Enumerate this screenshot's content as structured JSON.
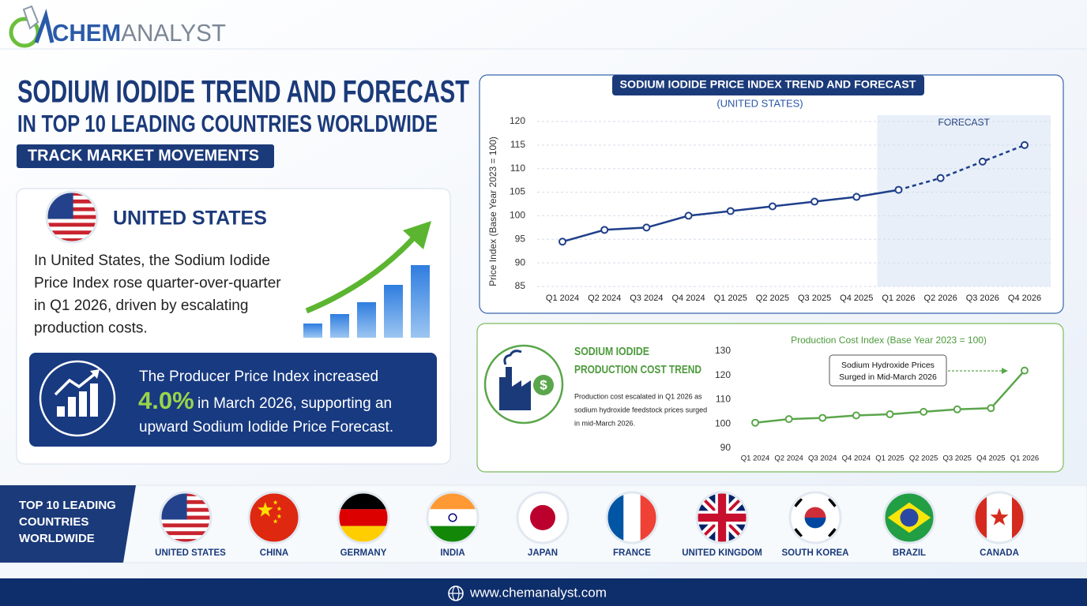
{
  "logo": {
    "brand_a": "CHEM",
    "brand_b": "ANALYST"
  },
  "title": [
    "SODIUM IODIDE TREND AND FORECAST",
    "IN TOP 10 LEADING COUNTRIES WORLDWIDE"
  ],
  "tagline": "TRACK MARKET MOVEMENTS",
  "country_card": {
    "country": "UNITED STATES",
    "text": [
      "In United States, the Sodium Iodide",
      "Price Index rose quarter-over-quarter",
      "in Q1 2026, driven by escalating",
      "production costs."
    ]
  },
  "ppi_card": {
    "line1": "The Producer Price Index increased",
    "highlight": "4.0%",
    "line2": "in March 2026, supporting an",
    "line3": "upward Sodium Iodide Price Forecast."
  },
  "cost_panel": {
    "title": [
      "SODIUM IODIDE",
      "PRODUCTION COST TREND"
    ],
    "text": [
      "Production cost escalated in Q1 2026 as",
      "sodium hydroxide feedstock prices surged",
      "in mid-March 2026."
    ]
  },
  "chart_data": [
    {
      "type": "line",
      "title": "SODIUM IODIDE PRICE INDEX TREND AND FORECAST",
      "subtitle": "(UNITED STATES)",
      "y_label": "Price Index (Base Year 2023 = 100)",
      "categories": [
        "Q1 2024",
        "Q2 2024",
        "Q3 2024",
        "Q4 2024",
        "Q1 2025",
        "Q2 2025",
        "Q3 2025",
        "Q4 2025",
        "Q1 2026",
        "Q2 2026",
        "Q3 2026",
        "Q4 2026"
      ],
      "values": [
        94.5,
        97,
        97.5,
        100,
        101,
        102,
        103,
        104,
        105.5,
        108,
        111.5,
        115
      ],
      "forecast_label": "FORECAST",
      "forecast_from": "Q1 2026",
      "color": "#1f3f8a",
      "ylim": [
        85,
        120
      ],
      "yticks": [
        85,
        90,
        95,
        100,
        105,
        110,
        115,
        120
      ],
      "grid": true
    },
    {
      "type": "line",
      "title": "Production Cost Index (Base Year 2023 = 100)",
      "annotation": [
        "Sodium Hydroxide Prices",
        "Surged in Mid-March 2026"
      ],
      "categories": [
        "Q1 2024",
        "Q2 2024",
        "Q3 2024",
        "Q4 2024",
        "Q1 2025",
        "Q2 2025",
        "Q3 2025",
        "Q4 2025",
        "Q1 2026"
      ],
      "values": [
        100.5,
        102,
        102.5,
        103.5,
        104,
        105,
        106,
        106.5,
        122
      ],
      "color": "#5aa64a",
      "ylim": [
        90,
        130
      ],
      "yticks": [
        90,
        100,
        110,
        120,
        130
      ],
      "grid": false
    }
  ],
  "countries_panel": {
    "title": [
      "TOP 10 LEADING",
      "COUNTRIES",
      "WORLDWIDE"
    ],
    "countries": [
      "UNITED STATES",
      "CHINA",
      "GERMANY",
      "INDIA",
      "JAPAN",
      "FRANCE",
      "UNITED KINGDOM",
      "SOUTH KOREA",
      "BRAZIL",
      "CANADA"
    ]
  },
  "footer": "www.chemanalyst.com"
}
